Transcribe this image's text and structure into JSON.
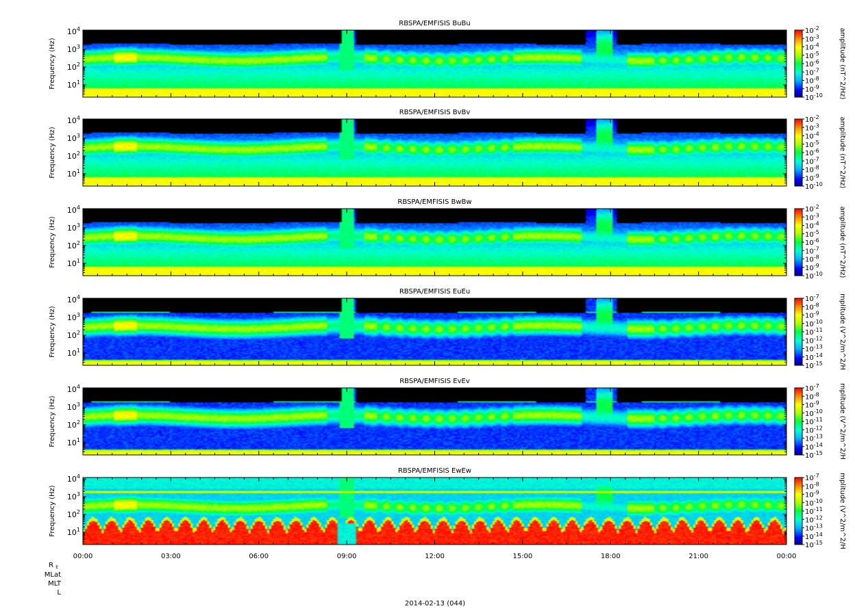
{
  "figure": {
    "date_label": "2014-02-13 (044)",
    "ephemeris_labels": [
      "R_E",
      "MLat",
      "MLT",
      "L"
    ],
    "colors": {
      "background": "#000000",
      "text": "#000000",
      "frame": "#000000"
    }
  },
  "chart_data": [
    {
      "type": "heatmap",
      "title": "RBSPA/EMFISIS  BuBu",
      "ylabel": "Frequency (Hz)",
      "yscale": "log",
      "ylim": [
        2,
        12000
      ],
      "yticks": [
        {
          "value": 10,
          "exp": "1"
        },
        {
          "value": 100,
          "exp": "2"
        },
        {
          "value": 1000,
          "exp": "3"
        },
        {
          "value": 10000,
          "exp": "4"
        }
      ],
      "xlim": [
        "00:00",
        "24:00"
      ],
      "xticks": [
        "00:00",
        "03:00",
        "06:00",
        "09:00",
        "12:00",
        "15:00",
        "18:00",
        "21:00",
        "00:00"
      ],
      "show_xtick_labels": false,
      "colorbar": {
        "label": "amplitude (nT^2/Hz)",
        "scale": "log",
        "range": [
          -10,
          -2
        ],
        "ticks": [
          {
            "base": "10",
            "exp": "-2"
          },
          {
            "base": "10",
            "exp": "-3"
          },
          {
            "base": "10",
            "exp": "-4"
          },
          {
            "base": "10",
            "exp": "-5"
          },
          {
            "base": "10",
            "exp": "-6"
          },
          {
            "base": "10",
            "exp": "-7"
          },
          {
            "base": "10",
            "exp": "-8"
          },
          {
            "base": "10",
            "exp": "-9"
          },
          {
            "base": "10",
            "exp": "-10"
          }
        ]
      },
      "component": "B"
    },
    {
      "type": "heatmap",
      "title": "RBSPA/EMFISIS  BvBv",
      "ylabel": "Frequency (Hz)",
      "yscale": "log",
      "ylim": [
        2,
        12000
      ],
      "yticks": [
        {
          "value": 10,
          "exp": "1"
        },
        {
          "value": 100,
          "exp": "2"
        },
        {
          "value": 1000,
          "exp": "3"
        },
        {
          "value": 10000,
          "exp": "4"
        }
      ],
      "xlim": [
        "00:00",
        "24:00"
      ],
      "xticks": [
        "00:00",
        "03:00",
        "06:00",
        "09:00",
        "12:00",
        "15:00",
        "18:00",
        "21:00",
        "00:00"
      ],
      "show_xtick_labels": false,
      "colorbar": {
        "label": "amplitude (nT^2/Hz)",
        "scale": "log",
        "range": [
          -10,
          -2
        ],
        "ticks": [
          {
            "base": "10",
            "exp": "-2"
          },
          {
            "base": "10",
            "exp": "-3"
          },
          {
            "base": "10",
            "exp": "-4"
          },
          {
            "base": "10",
            "exp": "-5"
          },
          {
            "base": "10",
            "exp": "-6"
          },
          {
            "base": "10",
            "exp": "-7"
          },
          {
            "base": "10",
            "exp": "-8"
          },
          {
            "base": "10",
            "exp": "-9"
          },
          {
            "base": "10",
            "exp": "-10"
          }
        ]
      },
      "component": "B"
    },
    {
      "type": "heatmap",
      "title": "RBSPA/EMFISIS  BwBw",
      "ylabel": "Frequency (Hz)",
      "yscale": "log",
      "ylim": [
        2,
        12000
      ],
      "yticks": [
        {
          "value": 10,
          "exp": "1"
        },
        {
          "value": 100,
          "exp": "2"
        },
        {
          "value": 1000,
          "exp": "3"
        },
        {
          "value": 10000,
          "exp": "4"
        }
      ],
      "xlim": [
        "00:00",
        "24:00"
      ],
      "xticks": [
        "00:00",
        "03:00",
        "06:00",
        "09:00",
        "12:00",
        "15:00",
        "18:00",
        "21:00",
        "00:00"
      ],
      "show_xtick_labels": false,
      "colorbar": {
        "label": "amplitude (nT^2/Hz)",
        "scale": "log",
        "range": [
          -10,
          -2
        ],
        "ticks": [
          {
            "base": "10",
            "exp": "-2"
          },
          {
            "base": "10",
            "exp": "-3"
          },
          {
            "base": "10",
            "exp": "-4"
          },
          {
            "base": "10",
            "exp": "-5"
          },
          {
            "base": "10",
            "exp": "-6"
          },
          {
            "base": "10",
            "exp": "-7"
          },
          {
            "base": "10",
            "exp": "-8"
          },
          {
            "base": "10",
            "exp": "-9"
          },
          {
            "base": "10",
            "exp": "-10"
          }
        ]
      },
      "component": "B"
    },
    {
      "type": "heatmap",
      "title": "RBSPA/EMFISIS  EuEu",
      "ylabel": "Frequency (Hz)",
      "yscale": "log",
      "ylim": [
        2,
        12000
      ],
      "yticks": [
        {
          "value": 10,
          "exp": "1"
        },
        {
          "value": 100,
          "exp": "2"
        },
        {
          "value": 1000,
          "exp": "3"
        },
        {
          "value": 10000,
          "exp": "4"
        }
      ],
      "xlim": [
        "00:00",
        "24:00"
      ],
      "xticks": [
        "00:00",
        "03:00",
        "06:00",
        "09:00",
        "12:00",
        "15:00",
        "18:00",
        "21:00",
        "00:00"
      ],
      "show_xtick_labels": false,
      "colorbar": {
        "label": "mplitude (V^2/m^2/H",
        "scale": "log",
        "range": [
          -15,
          -7
        ],
        "ticks": [
          {
            "base": "10",
            "exp": "-7"
          },
          {
            "base": "10",
            "exp": "-8"
          },
          {
            "base": "10",
            "exp": "-9"
          },
          {
            "base": "10",
            "exp": "-10"
          },
          {
            "base": "10",
            "exp": "-11"
          },
          {
            "base": "10",
            "exp": "-12"
          },
          {
            "base": "10",
            "exp": "-13"
          },
          {
            "base": "10",
            "exp": "-14"
          },
          {
            "base": "10",
            "exp": "-15"
          }
        ]
      },
      "component": "E"
    },
    {
      "type": "heatmap",
      "title": "RBSPA/EMFISIS  EvEv",
      "ylabel": "Frequency (Hz)",
      "yscale": "log",
      "ylim": [
        2,
        12000
      ],
      "yticks": [
        {
          "value": 10,
          "exp": "1"
        },
        {
          "value": 100,
          "exp": "2"
        },
        {
          "value": 1000,
          "exp": "3"
        },
        {
          "value": 10000,
          "exp": "4"
        }
      ],
      "xlim": [
        "00:00",
        "24:00"
      ],
      "xticks": [
        "00:00",
        "03:00",
        "06:00",
        "09:00",
        "12:00",
        "15:00",
        "18:00",
        "21:00",
        "00:00"
      ],
      "show_xtick_labels": false,
      "colorbar": {
        "label": "mplitude (V^2/m^2/H",
        "scale": "log",
        "range": [
          -15,
          -7
        ],
        "ticks": [
          {
            "base": "10",
            "exp": "-7"
          },
          {
            "base": "10",
            "exp": "-8"
          },
          {
            "base": "10",
            "exp": "-9"
          },
          {
            "base": "10",
            "exp": "-10"
          },
          {
            "base": "10",
            "exp": "-11"
          },
          {
            "base": "10",
            "exp": "-12"
          },
          {
            "base": "10",
            "exp": "-13"
          },
          {
            "base": "10",
            "exp": "-14"
          },
          {
            "base": "10",
            "exp": "-15"
          }
        ]
      },
      "component": "E"
    },
    {
      "type": "heatmap",
      "title": "RBSPA/EMFISIS  EwEw",
      "ylabel": "Frequency (Hz)",
      "yscale": "log",
      "ylim": [
        2,
        12000
      ],
      "yticks": [
        {
          "value": 10,
          "exp": "1"
        },
        {
          "value": 100,
          "exp": "2"
        },
        {
          "value": 1000,
          "exp": "3"
        },
        {
          "value": 10000,
          "exp": "4"
        }
      ],
      "xlim": [
        "00:00",
        "24:00"
      ],
      "xticks": [
        "00:00",
        "03:00",
        "06:00",
        "09:00",
        "12:00",
        "15:00",
        "18:00",
        "21:00",
        "00:00"
      ],
      "show_xtick_labels": true,
      "colorbar": {
        "label": "mplitude (V^2/m^2/H",
        "scale": "log",
        "range": [
          -15,
          -7
        ],
        "ticks": [
          {
            "base": "10",
            "exp": "-7"
          },
          {
            "base": "10",
            "exp": "-8"
          },
          {
            "base": "10",
            "exp": "-9"
          },
          {
            "base": "10",
            "exp": "-10"
          },
          {
            "base": "10",
            "exp": "-11"
          },
          {
            "base": "10",
            "exp": "-12"
          },
          {
            "base": "10",
            "exp": "-13"
          },
          {
            "base": "10",
            "exp": "-14"
          },
          {
            "base": "10",
            "exp": "-15"
          }
        ]
      },
      "component": "Ew"
    }
  ]
}
